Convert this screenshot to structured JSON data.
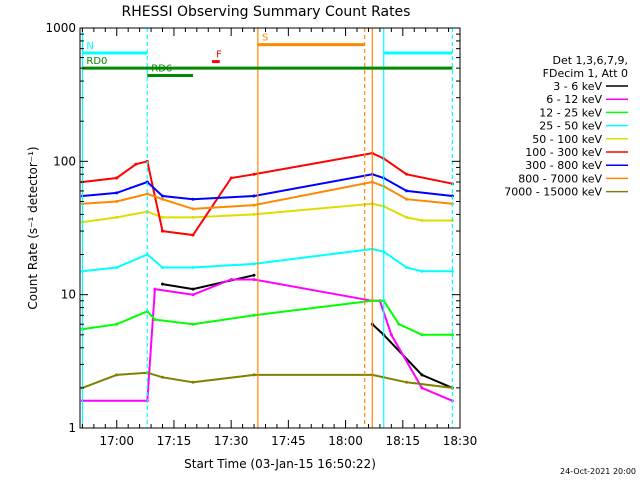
{
  "chart_data": {
    "type": "line",
    "title": "RHESSI Observing Summary Count Rates",
    "xlabel": "Start Time (03-Jan-15 16:50:22)",
    "ylabel": "Count Rate (s⁻¹ detector⁻¹)",
    "y_scale": "log",
    "ylim": [
      1,
      1000
    ],
    "xlim": [
      "16:50:22",
      "18:30"
    ],
    "y_ticks": [
      "1",
      "10",
      "100",
      "1000"
    ],
    "x_ticks": [
      "17:00",
      "17:15",
      "17:30",
      "17:45",
      "18:00",
      "18:15",
      "18:30"
    ],
    "legend_header": [
      "Det 1,3,6,7,9,",
      "FDecim 1, Att 0"
    ],
    "legend_position": "right",
    "series": [
      {
        "name": "3 - 6 keV",
        "color": "#000000",
        "x": [
          "16:51",
          "17:05",
          "17:08",
          "17:12",
          "17:20",
          "17:36",
          "18:05",
          "18:07",
          "18:10",
          "18:20",
          "18:28"
        ],
        "values": [
          null,
          null,
          null,
          12,
          11,
          14,
          null,
          6,
          5,
          2.5,
          2
        ]
      },
      {
        "name": "6 - 12 keV",
        "color": "#ff00ff",
        "x": [
          "16:51",
          "17:08",
          "17:10",
          "17:20",
          "17:30",
          "17:36",
          "18:07",
          "18:09",
          "18:12",
          "18:20",
          "18:28"
        ],
        "values": [
          1.6,
          1.6,
          11,
          10,
          13,
          13,
          9,
          9,
          5,
          2,
          1.6
        ]
      },
      {
        "name": "12 - 25 keV",
        "color": "#00ff00",
        "x": [
          "16:51",
          "17:00",
          "17:08",
          "17:10",
          "17:20",
          "17:36",
          "18:07",
          "18:10",
          "18:14",
          "18:20",
          "18:28"
        ],
        "values": [
          5.5,
          6,
          7.5,
          6.5,
          6,
          7,
          9,
          9,
          6,
          5,
          5
        ]
      },
      {
        "name": "25 - 50 keV",
        "color": "#00ffff",
        "x": [
          "16:51",
          "17:00",
          "17:08",
          "17:12",
          "17:20",
          "17:36",
          "18:07",
          "18:10",
          "18:16",
          "18:20",
          "18:28"
        ],
        "values": [
          15,
          16,
          20,
          16,
          16,
          17,
          22,
          21,
          16,
          15,
          15
        ]
      },
      {
        "name": "50 - 100 keV",
        "color": "#dddd00",
        "x": [
          "16:51",
          "17:00",
          "17:08",
          "17:12",
          "17:20",
          "17:36",
          "18:07",
          "18:10",
          "18:16",
          "18:20",
          "18:28"
        ],
        "values": [
          35,
          38,
          42,
          38,
          38,
          40,
          48,
          46,
          38,
          36,
          36
        ]
      },
      {
        "name": "100 - 300 keV",
        "color": "#ff0000",
        "x": [
          "16:51",
          "17:00",
          "17:05",
          "17:08",
          "17:12",
          "17:20",
          "17:30",
          "17:36",
          "18:07",
          "18:10",
          "18:16",
          "18:28"
        ],
        "values": [
          70,
          75,
          95,
          100,
          30,
          28,
          75,
          80,
          115,
          105,
          80,
          68
        ]
      },
      {
        "name": "300 - 800 keV",
        "color": "#0000ff",
        "x": [
          "16:51",
          "17:00",
          "17:08",
          "17:12",
          "17:20",
          "17:36",
          "18:07",
          "18:10",
          "18:16",
          "18:28"
        ],
        "values": [
          55,
          58,
          70,
          55,
          52,
          55,
          80,
          75,
          60,
          55
        ]
      },
      {
        "name": "800 - 7000 keV",
        "color": "#ff8800",
        "x": [
          "16:51",
          "17:00",
          "17:08",
          "17:12",
          "17:20",
          "17:36",
          "18:07",
          "18:10",
          "18:16",
          "18:28"
        ],
        "values": [
          48,
          50,
          57,
          52,
          44,
          47,
          70,
          65,
          52,
          48
        ]
      },
      {
        "name": "7000 - 15000 keV",
        "color": "#808000",
        "x": [
          "16:51",
          "17:00",
          "17:08",
          "17:12",
          "17:20",
          "17:36",
          "18:07",
          "18:10",
          "18:16",
          "18:28"
        ],
        "values": [
          2,
          2.5,
          2.6,
          2.4,
          2.2,
          2.5,
          2.5,
          2.4,
          2.2,
          2
        ]
      }
    ],
    "annotations": {
      "flags": [
        {
          "label": "N",
          "color": "#00ffff",
          "y": 650,
          "segments": [
            [
              "16:51",
              "17:08"
            ],
            [
              "18:10",
              "18:28"
            ]
          ]
        },
        {
          "label": "S",
          "color": "#ff8800",
          "y": 750,
          "segments": [
            [
              "17:37",
              "18:05"
            ]
          ]
        },
        {
          "label": "F",
          "color": "#ff0000",
          "y": 560,
          "segments": [
            [
              "17:25",
              "17:27"
            ]
          ]
        },
        {
          "label": "RD0",
          "color": "#008800",
          "y": 500,
          "segments": [
            [
              "16:51",
              "18:28"
            ]
          ]
        },
        {
          "label": "RD6",
          "color": "#008800",
          "y": 440,
          "segments": [
            [
              "17:08",
              "17:20"
            ]
          ]
        }
      ],
      "vlines": [
        {
          "x": "16:51",
          "color": "#00ffff",
          "style": "solid"
        },
        {
          "x": "17:08",
          "color": "#00ffff",
          "style": "dashed"
        },
        {
          "x": "17:37",
          "color": "#ff8800",
          "style": "solid"
        },
        {
          "x": "18:05",
          "color": "#ff8800",
          "style": "dashed"
        },
        {
          "x": "18:07",
          "color": "#ff8800",
          "style": "solid"
        },
        {
          "x": "18:10",
          "color": "#00ffff",
          "style": "solid"
        },
        {
          "x": "18:28",
          "color": "#00ffff",
          "style": "dashed"
        }
      ]
    },
    "timestamp": "24-Oct-2021 20:00"
  }
}
